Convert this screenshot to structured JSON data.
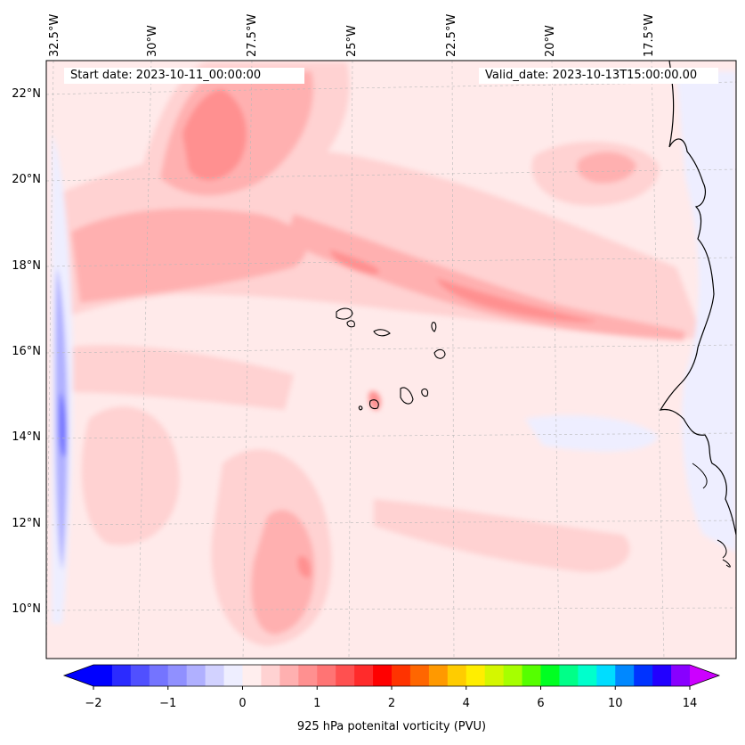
{
  "header": {
    "start_date": "Start date: 2023-10-11_00:00:00",
    "valid_date": "Valid_date: 2023-10-13T15:00:00.00"
  },
  "axes": {
    "longitude_labels": [
      "32.5°W",
      "30°W",
      "27.5°W",
      "25°W",
      "22.5°W",
      "20°W",
      "17.5°W"
    ],
    "longitude_values": [
      -32.5,
      -30,
      -27.5,
      -25,
      -22.5,
      -20,
      -17.5
    ],
    "latitude_labels": [
      "22°N",
      "20°N",
      "18°N",
      "16°N",
      "14°N",
      "12°N",
      "10°N"
    ],
    "latitude_values": [
      22,
      20,
      18,
      16,
      14,
      12,
      10
    ]
  },
  "colorbar": {
    "label": "925 hPa potenital vorticity (PVU)",
    "tick_labels": [
      "−2",
      "−1",
      "0",
      "1",
      "2",
      "4",
      "6",
      "10",
      "14"
    ],
    "tick_values": [
      -2,
      -1,
      0,
      1,
      2,
      4,
      6,
      10,
      14
    ],
    "levels": [
      -2,
      -1.75,
      -1.5,
      -1.25,
      -1,
      -0.75,
      -0.5,
      -0.25,
      0,
      0.25,
      0.5,
      0.75,
      1,
      1.25,
      1.5,
      1.75,
      2,
      2.5,
      3,
      3.5,
      4,
      4.5,
      5,
      5.5,
      6,
      7,
      8,
      9,
      10,
      11,
      12,
      13,
      14
    ],
    "colors": [
      "#0000ff",
      "#2b2bff",
      "#5050ff",
      "#7474ff",
      "#9090ff",
      "#b0b0ff",
      "#d2d2ff",
      "#eeeeff",
      "#ffeeee",
      "#ffd2d2",
      "#ffb0b0",
      "#ff9090",
      "#ff7474",
      "#ff5050",
      "#ff2b2b",
      "#ff0000",
      "#ff3300",
      "#ff6600",
      "#ff9900",
      "#ffcc00",
      "#ffee00",
      "#d4f700",
      "#a6ff00",
      "#55ff00",
      "#00ff22",
      "#00ff88",
      "#00ffcc",
      "#00ddff",
      "#0088ff",
      "#0033ff",
      "#2200ff",
      "#8800ff"
    ],
    "extend_min_color": "#0000ff",
    "extend_max_color": "#cc00ff"
  },
  "field_colors": {
    "background": "#ffeaea",
    "band_light": "#ffd2d2",
    "band_mid": "#ffb0b0",
    "band_strong": "#ff9090",
    "band_core": "#ff7474",
    "negative_light": "#eeeeff",
    "negative_mid": "#b0b0ff",
    "negative_strong": "#7474ff"
  }
}
